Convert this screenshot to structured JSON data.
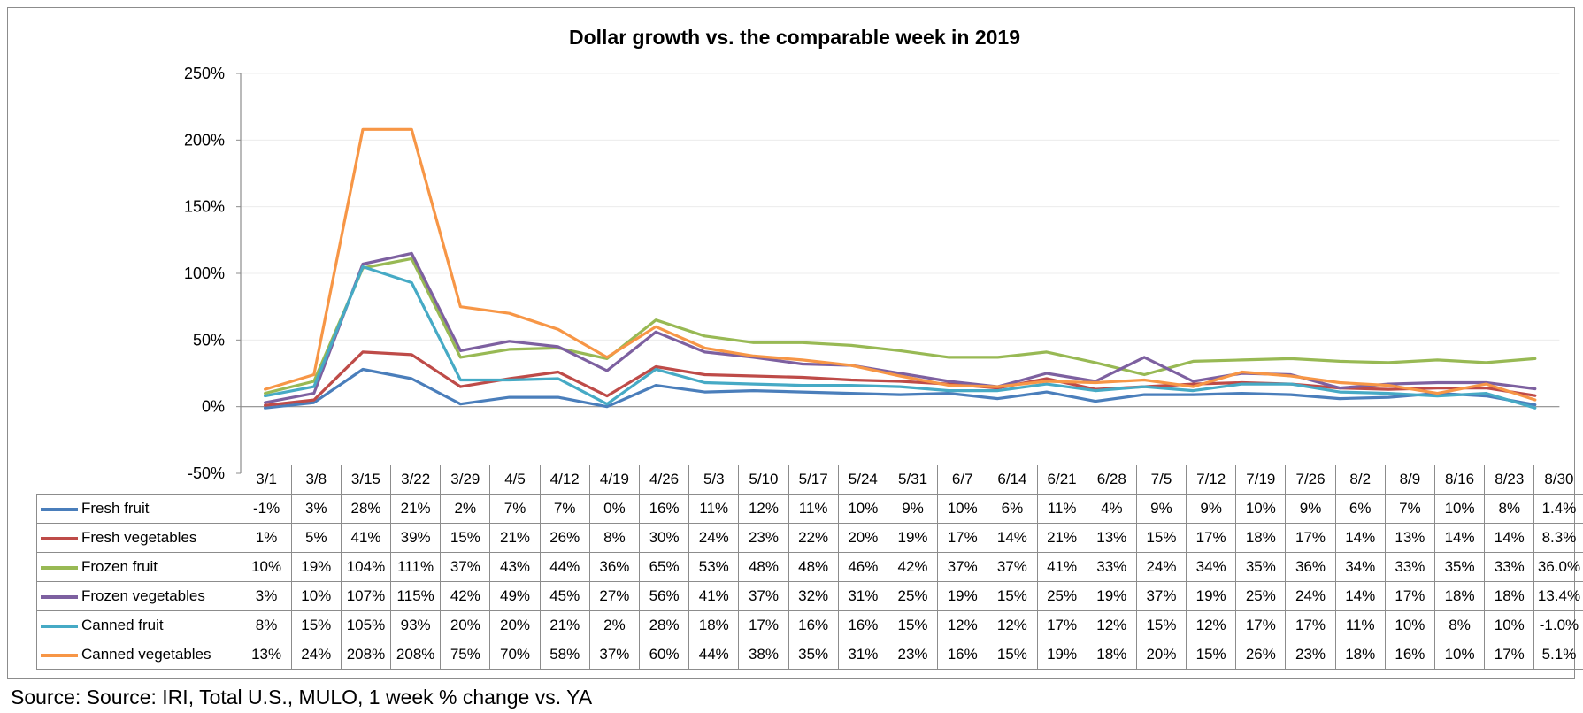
{
  "chart_data": {
    "type": "line",
    "title": "Dollar growth vs. the comparable week in 2019",
    "categories": [
      "3/1",
      "3/8",
      "3/15",
      "3/22",
      "3/29",
      "4/5",
      "4/12",
      "4/19",
      "4/26",
      "5/3",
      "5/10",
      "5/17",
      "5/24",
      "5/31",
      "6/7",
      "6/14",
      "6/21",
      "6/28",
      "7/5",
      "7/12",
      "7/19",
      "7/26",
      "8/2",
      "8/9",
      "8/16",
      "8/23",
      "8/30"
    ],
    "ylim": [
      -50,
      250
    ],
    "yticks": [
      -50,
      0,
      50,
      100,
      150,
      200,
      250
    ],
    "ytick_labels": [
      "-50%",
      "0%",
      "50%",
      "100%",
      "150%",
      "200%",
      "250%"
    ],
    "grid": true,
    "series": [
      {
        "name": "Fresh fruit",
        "color": "#4a7ebb",
        "values": [
          -1,
          3,
          28,
          21,
          2,
          7,
          7,
          0,
          16,
          11,
          12,
          11,
          10,
          9,
          10,
          6,
          11,
          4,
          9,
          9,
          10,
          9,
          6,
          7,
          10,
          8,
          1.4
        ],
        "labels": [
          "-1%",
          "3%",
          "28%",
          "21%",
          "2%",
          "7%",
          "7%",
          "0%",
          "16%",
          "11%",
          "12%",
          "11%",
          "10%",
          "9%",
          "10%",
          "6%",
          "11%",
          "4%",
          "9%",
          "9%",
          "10%",
          "9%",
          "6%",
          "7%",
          "10%",
          "8%",
          "1.4%"
        ]
      },
      {
        "name": "Fresh vegetables",
        "color": "#be4b48",
        "values": [
          1,
          5,
          41,
          39,
          15,
          21,
          26,
          8,
          30,
          24,
          23,
          22,
          20,
          19,
          17,
          14,
          21,
          13,
          15,
          17,
          18,
          17,
          14,
          13,
          14,
          14,
          8.3
        ],
        "labels": [
          "1%",
          "5%",
          "41%",
          "39%",
          "15%",
          "21%",
          "26%",
          "8%",
          "30%",
          "24%",
          "23%",
          "22%",
          "20%",
          "19%",
          "17%",
          "14%",
          "21%",
          "13%",
          "15%",
          "17%",
          "18%",
          "17%",
          "14%",
          "13%",
          "14%",
          "14%",
          "8.3%"
        ]
      },
      {
        "name": "Frozen fruit",
        "color": "#98b954",
        "values": [
          10,
          19,
          104,
          111,
          37,
          43,
          44,
          36,
          65,
          53,
          48,
          48,
          46,
          42,
          37,
          37,
          41,
          33,
          24,
          34,
          35,
          36,
          34,
          33,
          35,
          33,
          36.0
        ],
        "labels": [
          "10%",
          "19%",
          "104%",
          "111%",
          "37%",
          "43%",
          "44%",
          "36%",
          "65%",
          "53%",
          "48%",
          "48%",
          "46%",
          "42%",
          "37%",
          "37%",
          "41%",
          "33%",
          "24%",
          "34%",
          "35%",
          "36%",
          "34%",
          "33%",
          "35%",
          "33%",
          "36.0%"
        ]
      },
      {
        "name": "Frozen vegetables",
        "color": "#7d60a0",
        "values": [
          3,
          10,
          107,
          115,
          42,
          49,
          45,
          27,
          56,
          41,
          37,
          32,
          31,
          25,
          19,
          15,
          25,
          19,
          37,
          19,
          25,
          24,
          14,
          17,
          18,
          18,
          13.4
        ],
        "labels": [
          "3%",
          "10%",
          "107%",
          "115%",
          "42%",
          "49%",
          "45%",
          "27%",
          "56%",
          "41%",
          "37%",
          "32%",
          "31%",
          "25%",
          "19%",
          "15%",
          "25%",
          "19%",
          "37%",
          "19%",
          "25%",
          "24%",
          "14%",
          "17%",
          "18%",
          "18%",
          "13.4%"
        ]
      },
      {
        "name": "Canned fruit",
        "color": "#46aac5",
        "values": [
          8,
          15,
          105,
          93,
          20,
          20,
          21,
          2,
          28,
          18,
          17,
          16,
          16,
          15,
          12,
          12,
          17,
          12,
          15,
          12,
          17,
          17,
          11,
          10,
          8,
          10,
          -1.0
        ],
        "labels": [
          "8%",
          "15%",
          "105%",
          "93%",
          "20%",
          "20%",
          "21%",
          "2%",
          "28%",
          "18%",
          "17%",
          "16%",
          "16%",
          "15%",
          "12%",
          "12%",
          "17%",
          "12%",
          "15%",
          "12%",
          "17%",
          "17%",
          "11%",
          "10%",
          "8%",
          "10%",
          "-1.0%"
        ]
      },
      {
        "name": "Canned vegetables",
        "color": "#f79646",
        "values": [
          13,
          24,
          208,
          208,
          75,
          70,
          58,
          37,
          60,
          44,
          38,
          35,
          31,
          23,
          16,
          15,
          19,
          18,
          20,
          15,
          26,
          23,
          18,
          16,
          10,
          17,
          5.1
        ],
        "labels": [
          "13%",
          "24%",
          "208%",
          "208%",
          "75%",
          "70%",
          "58%",
          "37%",
          "60%",
          "44%",
          "38%",
          "35%",
          "31%",
          "23%",
          "16%",
          "15%",
          "19%",
          "18%",
          "20%",
          "15%",
          "26%",
          "23%",
          "18%",
          "16%",
          "10%",
          "17%",
          "5.1%"
        ]
      }
    ]
  },
  "source": "Source: Source: IRI, Total U.S., MULO, 1 week % change vs. YA"
}
